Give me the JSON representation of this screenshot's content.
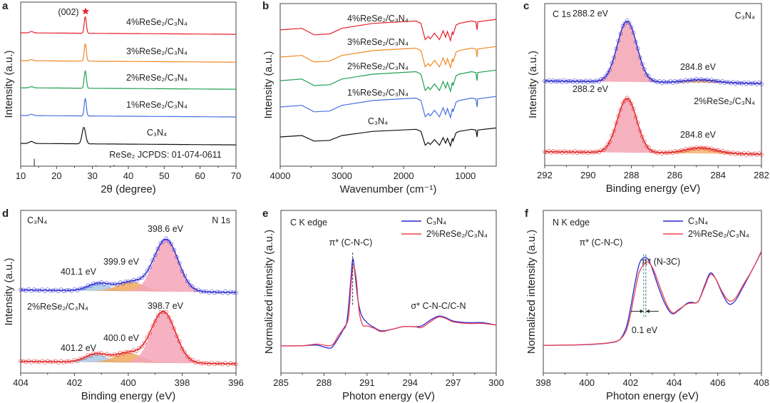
{
  "chart_data": [
    {
      "panel_label": "a",
      "type": "line",
      "xlabel": "2θ (degree)",
      "ylabel": "Intensity (a.u.)",
      "xlim": [
        10,
        70
      ],
      "ylim": [
        0,
        10
      ],
      "xticks": [
        10,
        20,
        30,
        40,
        50,
        60,
        70
      ],
      "series": [
        {
          "name": "4%ReSe₂/C₃N₄",
          "color": "#e8202a",
          "offset": 8.13,
          "peaks": [
            [
              28.0,
              1.0,
              0.3
            ],
            [
              13.0,
              0.08,
              0.5
            ]
          ]
        },
        {
          "name": "3%ReSe₂/C₃N₄",
          "color": "#f08a24",
          "offset": 6.43,
          "peaks": [
            [
              28.0,
              1.05,
              0.3
            ],
            [
              13.0,
              0.07,
              0.5
            ]
          ]
        },
        {
          "name": "2%ReSe₂/C₃N₄",
          "color": "#20a050",
          "offset": 4.78,
          "peaks": [
            [
              28.0,
              1.05,
              0.3
            ],
            [
              13.0,
              0.07,
              0.5
            ]
          ]
        },
        {
          "name": "1%ReSe₂/C₃N₄",
          "color": "#4a6ee0",
          "offset": 3.09,
          "peaks": [
            [
              28.0,
              1.05,
              0.3
            ],
            [
              13.0,
              0.08,
              0.5
            ]
          ]
        },
        {
          "name": "C₃N₄",
          "color": "#111111",
          "offset": 1.39,
          "peaks": [
            [
              27.6,
              1.0,
              0.5
            ],
            [
              13.0,
              0.12,
              0.6
            ]
          ]
        }
      ],
      "reference": {
        "label": "ReSe₂ JCPDS: 01-074-0611",
        "lines": [
          [
            13.8,
            0.45
          ],
          [
            31.0,
            0.05
          ],
          [
            36.0,
            0.08
          ]
        ]
      },
      "annotations": [
        "(002)"
      ],
      "marker_colors": {
        "star": "#e8202a"
      }
    },
    {
      "panel_label": "b",
      "type": "line",
      "xlabel": "Wavenumber (cm⁻¹)",
      "ylabel": "Intensity (a.u.)",
      "xlim": [
        4000,
        500
      ],
      "ylim": [
        0,
        10
      ],
      "xticks": [
        4000,
        3000,
        2000,
        1000
      ],
      "shape": [
        [
          4000,
          0
        ],
        [
          3650,
          0.1
        ],
        [
          3450,
          -0.3
        ],
        [
          3200,
          -0.25
        ],
        [
          3000,
          0.1
        ],
        [
          2500,
          0.4
        ],
        [
          1800,
          0.55
        ],
        [
          1720,
          0.4
        ],
        [
          1650,
          -0.6
        ],
        [
          1600,
          -0.4
        ],
        [
          1570,
          -0.55
        ],
        [
          1500,
          -0.2
        ],
        [
          1420,
          -0.6
        ],
        [
          1360,
          -0.05
        ],
        [
          1320,
          -0.45
        ],
        [
          1290,
          -0.1
        ],
        [
          1240,
          -0.65
        ],
        [
          1210,
          -0.1
        ],
        [
          1200,
          -0.3
        ],
        [
          1150,
          0.3
        ],
        [
          1100,
          0.4
        ],
        [
          900,
          0.55
        ],
        [
          830,
          0.5
        ],
        [
          810,
          0.0
        ],
        [
          800,
          0.5
        ],
        [
          500,
          0.65
        ]
      ],
      "series": [
        {
          "name": "4%ReSe₂/C₃N₄",
          "color": "#e8202a",
          "offset": 8.38
        },
        {
          "name": "3%ReSe₂/C₃N₄",
          "color": "#f08a24",
          "offset": 6.71
        },
        {
          "name": "2%ReSe₂/C₃N₄",
          "color": "#20a050",
          "offset": 5.26
        },
        {
          "name": "1%ReSe₂/C₃N₄",
          "color": "#4a6ee0",
          "offset": 3.64
        },
        {
          "name": "C₃N₄",
          "color": "#111111",
          "offset": 1.8
        }
      ]
    },
    {
      "panel_label": "c",
      "type": "line",
      "xlabel": "Binding energy (eV)",
      "ylabel": "Intensity (a.u.)",
      "xlim": [
        292,
        282
      ],
      "ylim": [
        0,
        10
      ],
      "xticks": [
        292,
        290,
        288,
        286,
        284,
        282
      ],
      "title": "C 1s",
      "series": [
        {
          "name": "C₃N₄",
          "color": "#2a2ad0",
          "offset": 5.07,
          "components": [
            {
              "center": 288.2,
              "height": 3.75,
              "width": 0.45,
              "fill": "#f4a3b4",
              "label": "288.2 eV"
            },
            {
              "center": 284.8,
              "height": 0.18,
              "width": 0.7,
              "fill": "#f5b070",
              "label": "284.8 eV"
            }
          ]
        },
        {
          "name": "2%ReSe₂/C₃N₄",
          "color": "#e02020",
          "offset": 0.7,
          "components": [
            {
              "center": 288.2,
              "height": 3.35,
              "width": 0.45,
              "fill": "#f4a3b4",
              "label": "288.2 eV"
            },
            {
              "center": 284.8,
              "height": 0.35,
              "width": 0.7,
              "fill": "#f5b070",
              "label": "284.8 eV"
            }
          ]
        }
      ]
    },
    {
      "panel_label": "d",
      "type": "line",
      "xlabel": "Binding energy (eV)",
      "ylabel": "Intensity (a.u.)",
      "xlim": [
        404,
        396
      ],
      "ylim": [
        0,
        10
      ],
      "xticks": [
        404,
        402,
        400,
        398,
        396
      ],
      "title": "N 1s",
      "series": [
        {
          "name": "C₃N₄",
          "color": "#2a2ad0",
          "offset": 4.96,
          "components": [
            {
              "center": 398.6,
              "height": 3.2,
              "width": 0.45,
              "fill": "#f4a3b8",
              "label": "398.6 eV"
            },
            {
              "center": 399.9,
              "height": 0.57,
              "width": 0.5,
              "fill": "#f0a860",
              "label": "399.9 eV"
            },
            {
              "center": 401.1,
              "height": 0.45,
              "width": 0.4,
              "fill": "#a8c8e8",
              "label": "401.1 eV"
            }
          ]
        },
        {
          "name": "2%ReSe₂/C₃N₄",
          "color": "#e02020",
          "offset": 0.57,
          "components": [
            {
              "center": 398.7,
              "height": 3.15,
              "width": 0.45,
              "fill": "#f4a3b8",
              "label": "398.7 eV"
            },
            {
              "center": 400.0,
              "height": 0.6,
              "width": 0.5,
              "fill": "#f0a860",
              "label": "400.0 eV"
            },
            {
              "center": 401.2,
              "height": 0.5,
              "width": 0.4,
              "fill": "#a8c8e8",
              "label": "401.2 eV"
            }
          ]
        }
      ]
    },
    {
      "panel_label": "e",
      "type": "line",
      "xlabel": "Photon energy (eV)",
      "ylabel": "Normalized intensity (a.u.)",
      "xlim": [
        285,
        300
      ],
      "ylim": [
        0,
        10
      ],
      "xticks": [
        285,
        288,
        291,
        294,
        297,
        300
      ],
      "title": "C K edge",
      "annotations": [
        "π* (C-N-C)",
        "σ* C-N-C/C-N"
      ],
      "marker_line_x": 290.0,
      "series": [
        {
          "name": "C₃N₄",
          "color": "#2a2ad0",
          "points": [
            [
              285,
              1.67
            ],
            [
              286.5,
              1.68
            ],
            [
              287.5,
              1.72
            ],
            [
              288,
              1.6
            ],
            [
              288.5,
              1.55
            ],
            [
              288.9,
              2.0
            ],
            [
              289.3,
              2.6
            ],
            [
              289.6,
              3.2
            ],
            [
              289.85,
              5.5
            ],
            [
              290,
              7.0
            ],
            [
              290.15,
              6.2
            ],
            [
              290.35,
              4.6
            ],
            [
              290.6,
              3.6
            ],
            [
              291,
              3.1
            ],
            [
              291.5,
              2.8
            ],
            [
              292,
              2.6
            ],
            [
              292.8,
              2.7
            ],
            [
              293.5,
              2.85
            ],
            [
              294.3,
              2.85
            ],
            [
              294.8,
              2.9
            ],
            [
              295.4,
              3.25
            ],
            [
              296,
              3.5
            ],
            [
              296.5,
              3.4
            ],
            [
              297,
              3.2
            ],
            [
              298,
              3.1
            ],
            [
              299,
              3.1
            ],
            [
              300,
              2.95
            ]
          ]
        },
        {
          "name": "2%ReSe₂/C₃N₄",
          "color": "#ee4050",
          "points": [
            [
              285,
              1.67
            ],
            [
              286.5,
              1.68
            ],
            [
              287.5,
              1.78
            ],
            [
              288.5,
              1.7
            ],
            [
              289,
              2.3
            ],
            [
              289.4,
              2.8
            ],
            [
              289.7,
              3.4
            ],
            [
              289.9,
              5.6
            ],
            [
              290.05,
              6.6
            ],
            [
              290.25,
              5.8
            ],
            [
              290.45,
              3.8
            ],
            [
              290.7,
              2.95
            ],
            [
              291,
              2.9
            ],
            [
              291.5,
              2.75
            ],
            [
              292,
              2.55
            ],
            [
              292.8,
              2.7
            ],
            [
              293.5,
              2.85
            ],
            [
              294.3,
              2.85
            ],
            [
              294.8,
              2.8
            ],
            [
              295.4,
              3.15
            ],
            [
              296,
              3.45
            ],
            [
              296.5,
              3.35
            ],
            [
              297,
              3.15
            ],
            [
              298,
              3.05
            ],
            [
              299,
              3.05
            ],
            [
              300,
              2.95
            ]
          ]
        }
      ]
    },
    {
      "panel_label": "f",
      "type": "line",
      "xlabel": "Photon energy (eV)",
      "ylabel": "Normalized intensity (a.u.)",
      "xlim": [
        398,
        408
      ],
      "ylim": [
        0,
        10
      ],
      "xticks": [
        398,
        400,
        402,
        404,
        406,
        408
      ],
      "title": "N K edge",
      "annotations": [
        "π* (C-N-C)",
        "π* (N-3C)",
        "0.1 eV"
      ],
      "marker_lines_x": [
        402.6,
        402.7
      ],
      "marker_colors": {
        "c3n4": "#30b0b0",
        "composite": "#777777"
      },
      "series": [
        {
          "name": "C₃N₄",
          "color": "#2a2ad0",
          "points": [
            [
              398,
              1.7
            ],
            [
              399,
              1.72
            ],
            [
              400,
              1.75
            ],
            [
              401,
              1.85
            ],
            [
              401.5,
              2.05
            ],
            [
              401.8,
              2.8
            ],
            [
              402.0,
              4.0
            ],
            [
              402.2,
              5.5
            ],
            [
              402.4,
              6.7
            ],
            [
              402.6,
              7.1
            ],
            [
              402.8,
              7.0
            ],
            [
              403.0,
              6.4
            ],
            [
              403.3,
              5.2
            ],
            [
              403.6,
              4.2
            ],
            [
              403.9,
              3.65
            ],
            [
              404.2,
              3.85
            ],
            [
              404.6,
              4.3
            ],
            [
              404.8,
              4.35
            ],
            [
              405.1,
              4.4
            ],
            [
              405.4,
              5.4
            ],
            [
              405.65,
              6.15
            ],
            [
              405.9,
              5.8
            ],
            [
              406.2,
              4.9
            ],
            [
              406.5,
              4.25
            ],
            [
              406.8,
              4.45
            ],
            [
              407.2,
              5.4
            ],
            [
              407.6,
              6.4
            ],
            [
              408,
              7.45
            ]
          ]
        },
        {
          "name": "2%ReSe₂/C₃N₄",
          "color": "#ee4050",
          "points": [
            [
              398,
              1.7
            ],
            [
              399,
              1.72
            ],
            [
              400,
              1.76
            ],
            [
              401,
              1.86
            ],
            [
              401.5,
              2.05
            ],
            [
              401.8,
              2.6
            ],
            [
              402.0,
              3.6
            ],
            [
              402.2,
              5.0
            ],
            [
              402.4,
              6.2
            ],
            [
              402.7,
              6.8
            ],
            [
              402.9,
              6.7
            ],
            [
              403.1,
              6.2
            ],
            [
              403.4,
              5.1
            ],
            [
              403.7,
              4.1
            ],
            [
              403.95,
              3.7
            ],
            [
              404.2,
              3.9
            ],
            [
              404.6,
              4.25
            ],
            [
              404.8,
              4.3
            ],
            [
              405.1,
              4.4
            ],
            [
              405.4,
              5.3
            ],
            [
              405.65,
              6.05
            ],
            [
              405.9,
              5.8
            ],
            [
              406.2,
              5.0
            ],
            [
              406.5,
              4.45
            ],
            [
              406.8,
              4.6
            ],
            [
              407.2,
              5.5
            ],
            [
              407.6,
              6.4
            ],
            [
              408,
              7.5
            ]
          ]
        }
      ]
    }
  ]
}
